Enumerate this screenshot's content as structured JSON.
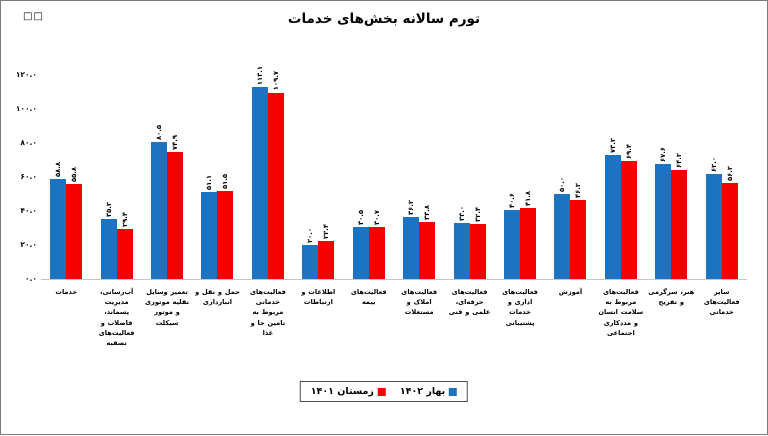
{
  "window": {
    "missing_glyphs": "□□"
  },
  "chart_data": {
    "type": "bar",
    "title": "تورم سالانه بخش‌های خدمات",
    "xlabel": "",
    "ylabel": "",
    "ylim": [
      0,
      120
    ],
    "grid": false,
    "legend_position": "bottom-center",
    "yticks": [
      {
        "value": 0,
        "label": "۰.۰"
      },
      {
        "value": 20,
        "label": "۲۰.۰"
      },
      {
        "value": 40,
        "label": "۴۰.۰"
      },
      {
        "value": 60,
        "label": "۶۰.۰"
      },
      {
        "value": 80,
        "label": "۸۰.۰"
      },
      {
        "value": 100,
        "label": "۱۰۰.۰"
      },
      {
        "value": 120,
        "label": "۱۲۰.۰"
      }
    ],
    "categories": [
      "خدمات",
      "آب‌رسانی، مدیریت پسماند، فاضلاب و فعالیت‌های تصفیه",
      "تعمیر وسایل نقلیه موتوری و موتور سیکلت",
      "حمل و نقل و انبارداری",
      "فعالیت‌های خدماتی مربوط به تامین جا و غذا",
      "اطلاعات و ارتباطات",
      "فعالیت‌های بیمه",
      "فعالیت‌های املاک و مستغلات",
      "فعالیت‌های حرفه‌ای، علمی و فنی",
      "فعالیت‌های اداری و خدمات پشتیبانی",
      "آموزش",
      "فعالیت‌های مربوط به سلامت انسان و مددکاری اجتماعی",
      "هنر، سرگرمی و تفریح",
      "سایر فعالیت‌های خدماتی"
    ],
    "series": [
      {
        "name": "بهار ۱۴۰۲",
        "color": "#1b73c2",
        "values": [
          58.8,
          35.2,
          80.5,
          51.1,
          113.1,
          20.0,
          30.5,
          36.2,
          33.0,
          40.6,
          50.0,
          73.2,
          67.6,
          62.0
        ],
        "labels": [
          "۵۸.۸",
          "۳۵.۲",
          "۸۰.۵",
          "۵۱.۱",
          "۱۱۳.۱",
          "۲۰.۰",
          "۳۰.۵",
          "۳۶.۲",
          "۳۳.۰",
          "۴۰.۶",
          "۵۰.۰",
          "۷۳.۲",
          "۶۷.۶",
          "۶۲.۰"
        ]
      },
      {
        "name": "زمستان ۱۴۰۱",
        "color": "#f40000",
        "values": [
          55.8,
          29.4,
          74.9,
          51.5,
          109.7,
          22.4,
          30.7,
          33.8,
          32.4,
          41.8,
          46.2,
          69.4,
          64.2,
          56.2
        ],
        "labels": [
          "۵۵.۸",
          "۲۹.۴",
          "۷۴.۹",
          "۵۱.۵",
          "۱۰۹.۷",
          "۲۲.۴",
          "۳۰.۷",
          "۳۳.۸",
          "۳۲.۴",
          "۴۱.۸",
          "۴۶.۲",
          "۶۹.۴",
          "۶۴.۲",
          "۵۶.۲"
        ]
      }
    ]
  }
}
